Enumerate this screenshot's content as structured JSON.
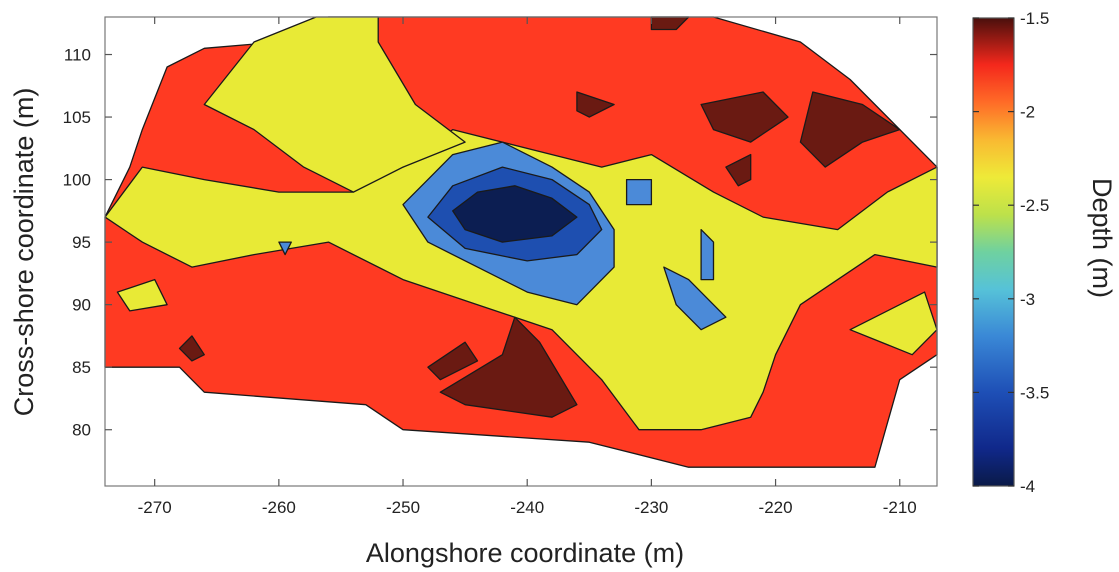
{
  "chart_data": {
    "type": "heatmap",
    "subtype": "filled-contour",
    "xlabel": "Alongshore coordinate (m)",
    "ylabel": "Cross-shore coordinate (m)",
    "colorbar_label": "Depth (m)",
    "xlim": [
      -274,
      -207
    ],
    "ylim": [
      75.5,
      113
    ],
    "xticks": [
      -270,
      -260,
      -250,
      -240,
      -230,
      -220,
      -210
    ],
    "xtick_labels": [
      "-270",
      "-260",
      "-250",
      "-240",
      "-230",
      "-220",
      "-210"
    ],
    "yticks": [
      80,
      85,
      90,
      95,
      100,
      105,
      110
    ],
    "ytick_labels": [
      "80",
      "85",
      "90",
      "95",
      "100",
      "105",
      "110"
    ],
    "colorbar_range": [
      -4,
      -1.5
    ],
    "colorbar_ticks": [
      -1.5,
      -2,
      -2.5,
      -3,
      -3.5,
      -4
    ],
    "colorbar_tick_labels": [
      "-1.5",
      "-2",
      "-2.5",
      "-3",
      "-3.5",
      "-4"
    ],
    "colormap": "jet",
    "contour_levels": [
      {
        "depth": -1.75,
        "color": "#6a1a12"
      },
      {
        "depth": -2.0,
        "color": "#ff3a22"
      },
      {
        "depth": -2.5,
        "color": "#e8ea36"
      },
      {
        "depth": -3.0,
        "color": "#4b8ad8"
      },
      {
        "depth": -3.5,
        "color": "#1e4fb0"
      },
      {
        "depth": -3.85,
        "color": "#0c1e52"
      }
    ],
    "regions": [
      {
        "name": "survey-area",
        "level": -2.0,
        "points": [
          [
            -274,
            97
          ],
          [
            -272,
            101
          ],
          [
            -271,
            104
          ],
          [
            -269,
            109
          ],
          [
            -266,
            110.5
          ],
          [
            -260,
            111
          ],
          [
            -256,
            113
          ],
          [
            -246,
            113
          ],
          [
            -236,
            113
          ],
          [
            -232,
            113
          ],
          [
            -225,
            113
          ],
          [
            -218,
            111
          ],
          [
            -214,
            108
          ],
          [
            -209,
            103
          ],
          [
            -207,
            101
          ],
          [
            -207,
            86
          ],
          [
            -210,
            84
          ],
          [
            -212,
            77
          ],
          [
            -227,
            77
          ],
          [
            -235,
            79
          ],
          [
            -250,
            80
          ],
          [
            -253,
            82
          ],
          [
            -266,
            83
          ],
          [
            -268,
            85
          ],
          [
            -274,
            85
          ]
        ]
      },
      {
        "name": "shallow-bar-mid",
        "level": -2.5,
        "points": [
          [
            -274,
            97
          ],
          [
            -271,
            101
          ],
          [
            -266,
            100
          ],
          [
            -260,
            99
          ],
          [
            -254,
            99
          ],
          [
            -250,
            101
          ],
          [
            -246,
            104
          ],
          [
            -238,
            102
          ],
          [
            -234,
            101
          ],
          [
            -230,
            102
          ],
          [
            -225,
            99
          ],
          [
            -221,
            97
          ],
          [
            -215,
            96
          ],
          [
            -211,
            99
          ],
          [
            -207,
            101
          ],
          [
            -207,
            93
          ],
          [
            -212,
            94
          ],
          [
            -215,
            92
          ],
          [
            -218,
            90
          ],
          [
            -220,
            86
          ],
          [
            -221,
            83
          ],
          [
            -222,
            81
          ],
          [
            -226,
            80
          ],
          [
            -231,
            80
          ],
          [
            -234,
            84
          ],
          [
            -238,
            88
          ],
          [
            -244,
            90
          ],
          [
            -250,
            92
          ],
          [
            -256,
            95
          ],
          [
            -262,
            94
          ],
          [
            -267,
            93
          ],
          [
            -271,
            95
          ]
        ]
      },
      {
        "name": "shallow-upper-left",
        "level": -2.5,
        "points": [
          [
            -262,
            111
          ],
          [
            -257,
            113
          ],
          [
            -252,
            113
          ],
          [
            -252,
            111
          ],
          [
            -249,
            106
          ],
          [
            -245,
            103
          ],
          [
            -250,
            101
          ],
          [
            -254,
            99
          ],
          [
            -258,
            101
          ],
          [
            -262,
            104
          ],
          [
            -266,
            106
          ]
        ]
      },
      {
        "name": "shallow-right-lobe",
        "level": -2.5,
        "points": [
          [
            -214,
            88
          ],
          [
            -208,
            91
          ],
          [
            -207,
            88
          ],
          [
            -209,
            86
          ]
        ]
      },
      {
        "name": "shallow-left-edge",
        "level": -2.5,
        "points": [
          [
            -273,
            91
          ],
          [
            -270,
            92
          ],
          [
            -269,
            90
          ],
          [
            -272,
            89.5
          ]
        ]
      },
      {
        "name": "deep-hole-outer",
        "level": -3.0,
        "points": [
          [
            -250,
            98
          ],
          [
            -248,
            100
          ],
          [
            -246,
            102
          ],
          [
            -242,
            103
          ],
          [
            -238,
            101
          ],
          [
            -235,
            99
          ],
          [
            -233,
            96
          ],
          [
            -233,
            93
          ],
          [
            -236,
            90
          ],
          [
            -240,
            91
          ],
          [
            -244,
            93
          ],
          [
            -248,
            95
          ]
        ]
      },
      {
        "name": "deep-hole-mid",
        "level": -3.5,
        "points": [
          [
            -248,
            97
          ],
          [
            -246,
            99.5
          ],
          [
            -242,
            101
          ],
          [
            -238,
            100
          ],
          [
            -235,
            98
          ],
          [
            -234,
            96
          ],
          [
            -236,
            94
          ],
          [
            -240,
            93.5
          ],
          [
            -245,
            94.5
          ]
        ]
      },
      {
        "name": "deep-hole-core",
        "level": -3.85,
        "points": [
          [
            -246,
            97.5
          ],
          [
            -244,
            99
          ],
          [
            -241,
            99.5
          ],
          [
            -238,
            98.5
          ],
          [
            -236,
            97
          ],
          [
            -238,
            95.5
          ],
          [
            -242,
            95
          ],
          [
            -245,
            96
          ]
        ]
      },
      {
        "name": "channel-right",
        "level": -3.0,
        "points": [
          [
            -229,
            93
          ],
          [
            -227,
            92
          ],
          [
            -224,
            89
          ],
          [
            -226,
            88
          ],
          [
            -228,
            90
          ]
        ]
      },
      {
        "name": "blue-spot-right",
        "level": -3.0,
        "points": [
          [
            -232,
            100
          ],
          [
            -230,
            100
          ],
          [
            -230,
            98
          ],
          [
            -232,
            98
          ]
        ]
      },
      {
        "name": "blue-spot-mid",
        "level": -3.0,
        "points": [
          [
            -226,
            96
          ],
          [
            -225,
            95
          ],
          [
            -225,
            92
          ],
          [
            -226,
            92
          ]
        ]
      },
      {
        "name": "blue-spot-left",
        "level": -3.0,
        "points": [
          [
            -260,
            95
          ],
          [
            -259,
            95
          ],
          [
            -259.5,
            94
          ]
        ]
      },
      {
        "name": "shoal-lower-mid",
        "level": -1.75,
        "points": [
          [
            -247,
            83
          ],
          [
            -245,
            82
          ],
          [
            -238,
            81
          ],
          [
            -236,
            82
          ],
          [
            -239,
            87
          ],
          [
            -241,
            89
          ],
          [
            -242,
            86
          ]
        ]
      },
      {
        "name": "shoal-lower-left",
        "level": -1.75,
        "points": [
          [
            -248,
            85
          ],
          [
            -245,
            87
          ],
          [
            -244,
            85.5
          ],
          [
            -247,
            84
          ]
        ]
      },
      {
        "name": "shoal-left",
        "level": -1.75,
        "points": [
          [
            -268,
            86.5
          ],
          [
            -267,
            87.5
          ],
          [
            -266,
            86
          ],
          [
            -267,
            85.5
          ]
        ]
      },
      {
        "name": "shoal-upper-right-a",
        "level": -1.75,
        "points": [
          [
            -226,
            106
          ],
          [
            -221,
            107
          ],
          [
            -219,
            105
          ],
          [
            -222,
            103
          ],
          [
            -225,
            104
          ]
        ]
      },
      {
        "name": "shoal-upper-right-b",
        "level": -1.75,
        "points": [
          [
            -217,
            107
          ],
          [
            -213,
            106
          ],
          [
            -210,
            104
          ],
          [
            -213,
            103
          ],
          [
            -216,
            101
          ],
          [
            -218,
            103
          ]
        ]
      },
      {
        "name": "shoal-upper-right-c",
        "level": -1.75,
        "points": [
          [
            -224,
            101
          ],
          [
            -222,
            102
          ],
          [
            -222,
            100
          ],
          [
            -223,
            99.5
          ]
        ]
      },
      {
        "name": "shoal-upper-mid",
        "level": -1.75,
        "points": [
          [
            -230,
            113
          ],
          [
            -227,
            113
          ],
          [
            -228,
            112
          ],
          [
            -230,
            112
          ]
        ]
      },
      {
        "name": "shoal-upper-mid-b",
        "level": -1.75,
        "points": [
          [
            -236,
            107
          ],
          [
            -233,
            106
          ],
          [
            -235,
            105
          ],
          [
            -236,
            105.5
          ]
        ]
      }
    ]
  }
}
